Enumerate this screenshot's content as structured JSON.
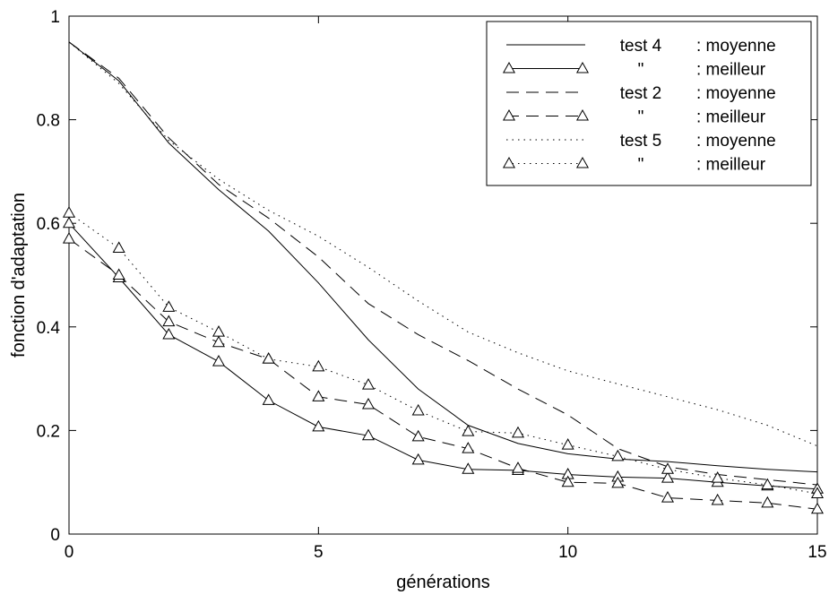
{
  "chart_data": {
    "type": "line",
    "title": "",
    "xlabel": "générations",
    "ylabel": "fonction d'adaptation",
    "xlim": [
      0,
      15
    ],
    "ylim": [
      0,
      1
    ],
    "xticks": [
      0,
      5,
      10,
      15
    ],
    "yticks": [
      0,
      0.2,
      0.4,
      0.6,
      0.8,
      1
    ],
    "xtick_labels": [
      "0",
      "5",
      "10",
      "15"
    ],
    "ytick_labels": [
      "0",
      "0.2",
      "0.4",
      "0.6",
      "0.8",
      "1"
    ],
    "grid": false,
    "legend_position": "top-right",
    "series": [
      {
        "key": "test4_moyenne",
        "legend_name": "test 4",
        "legend_suffix": ": moyenne",
        "line_style": "solid",
        "marker": "none",
        "x": [
          0,
          1,
          2,
          3,
          4,
          5,
          6,
          7,
          8,
          9,
          10,
          11,
          12,
          13,
          14,
          15
        ],
        "y": [
          0.95,
          0.875,
          0.755,
          0.665,
          0.585,
          0.485,
          0.375,
          0.28,
          0.21,
          0.175,
          0.155,
          0.145,
          0.14,
          0.132,
          0.125,
          0.12
        ]
      },
      {
        "key": "test4_meilleur",
        "legend_name": "\"",
        "legend_suffix": ": meilleur",
        "line_style": "solid",
        "marker": "triangle",
        "x": [
          0,
          1,
          2,
          3,
          4,
          5,
          6,
          7,
          8,
          9,
          10,
          11,
          12,
          13,
          14,
          15
        ],
        "y": [
          0.6,
          0.495,
          0.385,
          0.333,
          0.258,
          0.207,
          0.19,
          0.143,
          0.125,
          0.123,
          0.115,
          0.11,
          0.108,
          0.1,
          0.093,
          0.087
        ]
      },
      {
        "key": "test2_moyenne",
        "legend_name": "test 2",
        "legend_suffix": ": moyenne",
        "line_style": "dashed",
        "marker": "none",
        "x": [
          0,
          1,
          2,
          3,
          4,
          5,
          6,
          7,
          8,
          9,
          10,
          11,
          12,
          13,
          14,
          15
        ],
        "y": [
          0.95,
          0.88,
          0.765,
          0.675,
          0.61,
          0.535,
          0.445,
          0.385,
          0.335,
          0.28,
          0.23,
          0.165,
          0.13,
          0.115,
          0.105,
          0.095
        ]
      },
      {
        "key": "test2_meilleur",
        "legend_name": "\"",
        "legend_suffix": ": meilleur",
        "line_style": "dashed",
        "marker": "triangle",
        "x": [
          0,
          1,
          2,
          3,
          4,
          5,
          6,
          7,
          8,
          9,
          10,
          11,
          12,
          13,
          14,
          15
        ],
        "y": [
          0.57,
          0.5,
          0.41,
          0.37,
          0.338,
          0.265,
          0.25,
          0.188,
          0.165,
          0.127,
          0.1,
          0.098,
          0.07,
          0.065,
          0.06,
          0.048
        ]
      },
      {
        "key": "test5_moyenne",
        "legend_name": "test 5",
        "legend_suffix": ": moyenne",
        "line_style": "dotted",
        "marker": "none",
        "x": [
          0,
          1,
          2,
          3,
          4,
          5,
          6,
          7,
          8,
          9,
          10,
          11,
          12,
          13,
          14,
          15
        ],
        "y": [
          0.95,
          0.87,
          0.76,
          0.685,
          0.625,
          0.575,
          0.515,
          0.45,
          0.39,
          0.35,
          0.315,
          0.29,
          0.265,
          0.24,
          0.21,
          0.17
        ]
      },
      {
        "key": "test5_meilleur",
        "legend_name": "\"",
        "legend_suffix": ": meilleur",
        "line_style": "dotted",
        "marker": "triangle",
        "x": [
          0,
          1,
          2,
          3,
          4,
          5,
          6,
          7,
          8,
          9,
          10,
          11,
          12,
          13,
          14,
          15
        ],
        "y": [
          0.62,
          0.552,
          0.438,
          0.39,
          0.338,
          0.323,
          0.288,
          0.238,
          0.198,
          0.195,
          0.172,
          0.15,
          0.125,
          0.108,
          0.095,
          0.078
        ]
      }
    ]
  }
}
